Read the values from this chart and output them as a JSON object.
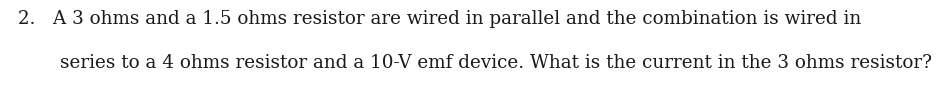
{
  "line1": "2.   A 3 ohms and a 1.5 ohms resistor are wired in parallel and the combination is wired in",
  "line2": "series to a 4 ohms resistor and a 10-V emf device. What is the current in the 3 ohms resistor?",
  "font_size": 13.2,
  "font_family": "serif",
  "text_color": "#1a1a1a",
  "background_color": "#ffffff",
  "fig_width": 9.45,
  "fig_height": 0.87,
  "dpi": 100
}
